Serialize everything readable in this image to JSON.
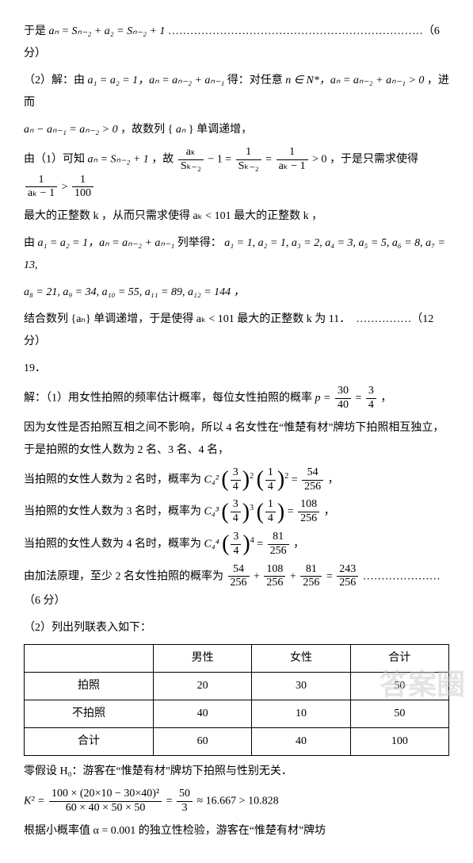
{
  "lines": {
    "l1_a": "于是 ",
    "l1_b": "……………………………………………………………（6 分）",
    "l2_a": "（2）解：由 ",
    "l2_b": " 得：对任意 ",
    "l2_c": "，进而",
    "l3_a": "，故数列 {",
    "l3_b": "} 单调递增，",
    "l4_a": "由（1）可知 ",
    "l4_b": "，故 ",
    "l4_c": "，于是只需求使得 ",
    "l5": "最大的正整数 k ，从而只需求使得 aₖ < 101 最大的正整数 k ，",
    "l6_a": "由 ",
    "l6_b": " 列举得：",
    "l7": "a₈ = 21, a₉ = 34, a₁₀ = 55, a₁₁ = 89, a₁₂ = 144 ，",
    "l8": "结合数列 {aₙ} 单调递增，于是使得 aₖ < 101 最大的正整数 k 为 11．　……………（12 分）",
    "l9": "19．",
    "l10_a": "解：（1）用女性拍照的频率估计概率，每位女性拍照的概率 ",
    "l10_b": "，",
    "l11": "因为女性是否拍照互相之间不影响，所以 4 名女性在“惟楚有材”牌坊下拍照相互独立，于是拍照的女性人数为 2 名、3 名、4 名，",
    "l12_a": "当拍照的女性人数为 2 名时，概率为 ",
    "l12_b": "，",
    "l13_a": "当拍照的女性人数为 3 名时，概率为 ",
    "l13_b": "，",
    "l14_a": "当拍照的女性人数为 4 名时，概率为 ",
    "l14_b": "，",
    "l15_a": "由加法原理，至少 2 名女性拍照的概率为 ",
    "l15_b": " …………………（6 分）",
    "l16": "（2）列出列联表入如下：",
    "l17": "零假设 H₀：游客在“惟楚有材”牌坊下拍照与性别无关．",
    "l18_a": "K² = ",
    "l18_b": " ≈ 16.667 > 10.828",
    "l19": "根据小概率值 α = 0.001 的独立性检验，游客在“惟楚有材”牌坊"
  },
  "math": {
    "eq1": "aₙ = Sₙ₋₂ + a₂ = Sₙ₋₂ + 1",
    "eq2a": "a₁ = a₂ = 1，aₙ = aₙ₋₂ + aₙ₋₁",
    "eq2b": "n ∈ N*，aₙ = aₙ₋₂ + aₙ₋₁ > 0",
    "eq3": "aₙ − aₙ₋₁ = aₙ₋₂ > 0",
    "eq3b": "aₙ",
    "eq4": "aₙ = Sₙ₋₂ + 1",
    "eq6a": "a₁ = a₂ = 1，aₙ = aₙ₋₂ + aₙ₋₁",
    "eq6b": "a₁ = 1, a₂ = 1, a₃ = 2, a₄ = 3, a₅ = 5, a₆ = 8, a₇ = 13,",
    "p_eq": "p = ",
    "k2_approx": "50"
  },
  "frac": {
    "ak_Sk2": {
      "num": "aₖ",
      "den": "Sₖ₋₂"
    },
    "one_Sk2": {
      "num": "1",
      "den": "Sₖ₋₂"
    },
    "one_ak1": {
      "num": "1",
      "den": "aₖ − 1"
    },
    "one_100": {
      "num": "1",
      "den": "100"
    },
    "p30_40": {
      "num": "30",
      "den": "40"
    },
    "p3_4": {
      "num": "3",
      "den": "4"
    },
    "p1_4": {
      "num": "1",
      "den": "4"
    },
    "r54_256": {
      "num": "54",
      "den": "256"
    },
    "r108_256": {
      "num": "108",
      "den": "256"
    },
    "r81_256": {
      "num": "81",
      "den": "256"
    },
    "r243_256": {
      "num": "243",
      "den": "256"
    },
    "k2_num": {
      "num": "100 × (20×10 − 30×40)²",
      "den": "60 × 40 × 50 × 50"
    },
    "k2_simp": {
      "num": "50",
      "den": "3"
    }
  },
  "comb": {
    "c42": "C₄²",
    "c43": "C₄³",
    "c44": "C₄⁴"
  },
  "table": {
    "headers": [
      "",
      "男性",
      "女性",
      "合计"
    ],
    "rows": [
      [
        "拍照",
        "20",
        "30",
        "50"
      ],
      [
        "不拍照",
        "40",
        "10",
        "50"
      ],
      [
        "合计",
        "60",
        "40",
        "100"
      ]
    ]
  },
  "watermark": "答案圈"
}
